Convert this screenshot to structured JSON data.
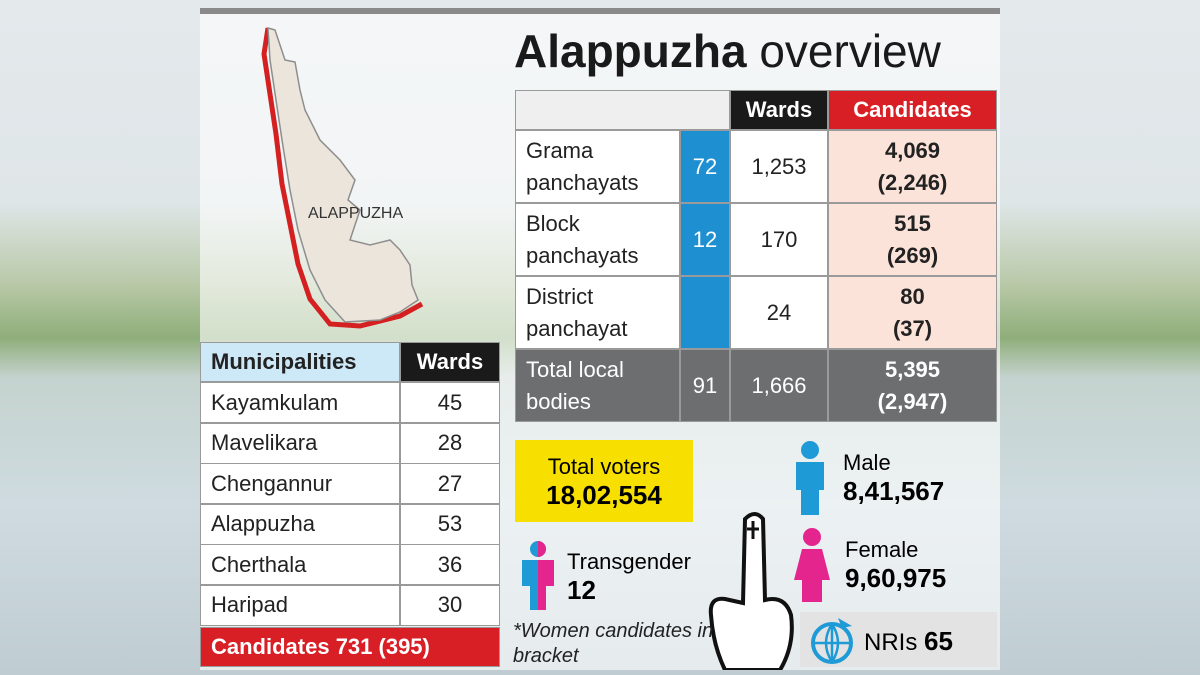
{
  "map": {
    "label": "ALAPPUZHA"
  },
  "title": {
    "bold": "Alappuzha",
    "light": "overview"
  },
  "local_bodies": {
    "columns": [
      "Wards",
      "Candidates"
    ],
    "rows": [
      {
        "label": "Grama panchayats",
        "count": "72",
        "wards": "1,253",
        "candidates": "4,069",
        "women_candidates": "(2,246)"
      },
      {
        "label": "Block panchayats",
        "count": "12",
        "wards": "170",
        "candidates": "515",
        "women_candidates": "(269)"
      },
      {
        "label": "District panchayat",
        "wards": "24",
        "candidates": "80",
        "women_candidates": "(37)"
      }
    ],
    "total": {
      "label": "Total local bodies",
      "count": "91",
      "wards": "1,666",
      "candidates": "5,395",
      "women_candidates": "(2,947)"
    }
  },
  "municipalities": {
    "columns": [
      "Municipalities",
      "Wards"
    ],
    "rows": [
      [
        "Kayamkulam",
        "45"
      ],
      [
        "Mavelikara",
        "28"
      ],
      [
        "Chengannur",
        "27"
      ],
      [
        "Alappuzha",
        "53"
      ],
      [
        "Cherthala",
        "36"
      ],
      [
        "Haripad",
        "30"
      ]
    ],
    "footer": "Candidates 731 (395)"
  },
  "voters": {
    "total": {
      "label": "Total voters",
      "value": "18,02,554"
    },
    "male": {
      "label": "Male",
      "value": "8,41,567"
    },
    "female": {
      "label": "Female",
      "value": "9,60,975"
    },
    "transgender": {
      "label": "Transgender",
      "value": "12"
    },
    "nris": {
      "label": "NRIs",
      "value": "65"
    }
  },
  "footnote": "*Women candidates in bracket"
}
